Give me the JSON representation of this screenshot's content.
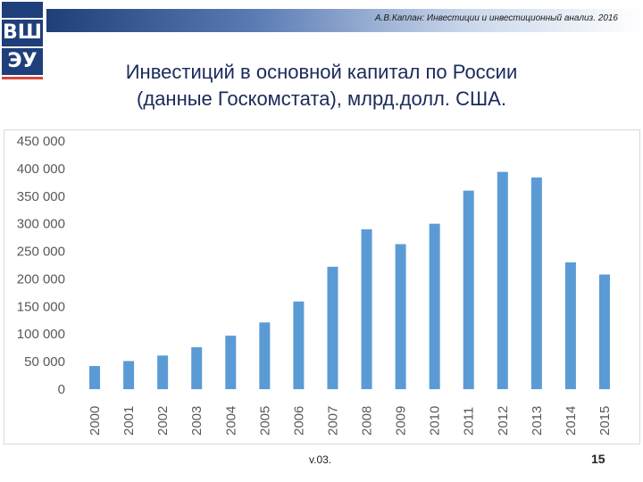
{
  "header": {
    "text": "А.В.Каплан: Инвестиции и инвестиционный анализ. 2016"
  },
  "logo": {
    "letters_top": "ВШ",
    "letters_bottom": "ЭУ"
  },
  "title": {
    "line1": "Инвестиций в основной капитал по России",
    "line2": "(данные Госкомстата), млрд.долл. США."
  },
  "footer": {
    "version": "v.03.",
    "page_number": "15"
  },
  "colors": {
    "bar": "#5b9bd5",
    "axis_text": "#595959",
    "grid": "#d9d9d9"
  },
  "chart_data": {
    "type": "bar",
    "categories": [
      "2000",
      "2001",
      "2002",
      "2003",
      "2004",
      "2005",
      "2006",
      "2007",
      "2008",
      "2009",
      "2010",
      "2011",
      "2012",
      "2013",
      "2014",
      "2015"
    ],
    "values": [
      42000,
      51000,
      61000,
      76000,
      97000,
      121000,
      159000,
      222000,
      290000,
      263000,
      300000,
      360000,
      394000,
      384000,
      230000,
      208000
    ],
    "ylim": [
      0,
      450000
    ],
    "yticks": [
      0,
      50000,
      100000,
      150000,
      200000,
      250000,
      300000,
      350000,
      400000,
      450000
    ],
    "ytick_labels": [
      "0",
      "50 000",
      "100 000",
      "150 000",
      "200 000",
      "250 000",
      "300 000",
      "350 000",
      "400 000",
      "450 000"
    ],
    "grid": true
  }
}
